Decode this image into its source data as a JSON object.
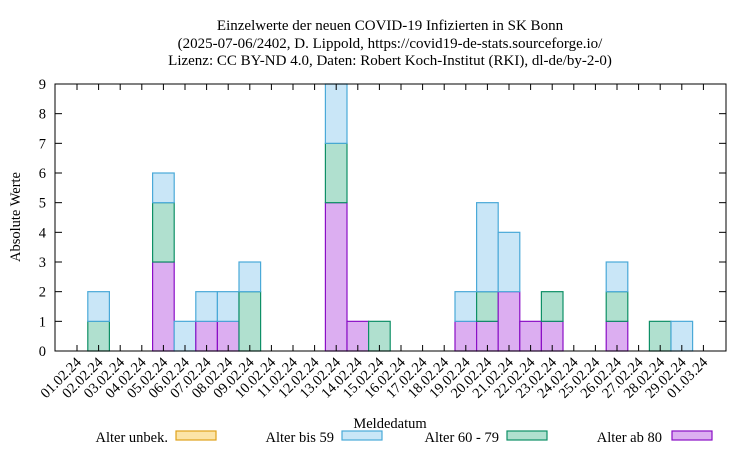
{
  "chart_data": {
    "type": "bar",
    "stacked": true,
    "title": [
      "Einzelwerte der neuen COVID-19 Infizierten in SK Bonn",
      "(2025-07-06/2402, D. Lippold, https://covid19-de-stats.sourceforge.io/",
      "Lizenz: CC BY-ND 4.0, Daten: Robert Koch-Institut (RKI), dl-de/by-2-0)"
    ],
    "xlabel": "Meldedatum",
    "ylabel": "Absolute Werte",
    "ylim": [
      0,
      9
    ],
    "yticks": [
      "0",
      "1",
      "2",
      "3",
      "4",
      "5",
      "6",
      "7",
      "8",
      "9"
    ],
    "categories": [
      "01.02.24",
      "02.02.24",
      "03.02.24",
      "04.02.24",
      "05.02.24",
      "06.02.24",
      "07.02.24",
      "08.02.24",
      "09.02.24",
      "10.02.24",
      "11.02.24",
      "12.02.24",
      "13.02.24",
      "14.02.24",
      "15.02.24",
      "16.02.24",
      "17.02.24",
      "18.02.24",
      "19.02.24",
      "20.02.24",
      "21.02.24",
      "22.02.24",
      "23.02.24",
      "24.02.24",
      "25.02.24",
      "26.02.24",
      "27.02.24",
      "28.02.24",
      "29.02.24",
      "01.03.24"
    ],
    "series": [
      {
        "name": "Alter ab 80",
        "fill": "#dcaef1",
        "stroke": "#8a0fc6",
        "values": [
          0,
          0,
          0,
          0,
          3,
          0,
          1,
          1,
          0,
          0,
          0,
          0,
          5,
          1,
          0,
          0,
          0,
          0,
          1,
          1,
          2,
          1,
          1,
          0,
          0,
          1,
          0,
          0,
          0,
          0
        ]
      },
      {
        "name": "Alter 60 - 79",
        "fill": "#b0e0cf",
        "stroke": "#0e8f66",
        "values": [
          0,
          1,
          0,
          0,
          2,
          0,
          0,
          0,
          2,
          0,
          0,
          0,
          2,
          0,
          1,
          0,
          0,
          0,
          0,
          1,
          0,
          0,
          1,
          0,
          0,
          1,
          0,
          1,
          0,
          0
        ]
      },
      {
        "name": "Alter bis 59",
        "fill": "#c9e6f7",
        "stroke": "#4aa9d8",
        "values": [
          0,
          1,
          0,
          0,
          1,
          1,
          1,
          1,
          1,
          0,
          0,
          0,
          2,
          0,
          0,
          0,
          0,
          0,
          1,
          3,
          2,
          0,
          0,
          0,
          0,
          1,
          0,
          0,
          1,
          0
        ]
      },
      {
        "name": "Alter unbek.",
        "fill": "#fce4a7",
        "stroke": "#e0a21b",
        "values": [
          0,
          0,
          0,
          0,
          0,
          0,
          0,
          0,
          0,
          0,
          0,
          0,
          0,
          0,
          0,
          0,
          0,
          0,
          0,
          0,
          0,
          0,
          0,
          0,
          0,
          0,
          0,
          0,
          0,
          0
        ]
      }
    ],
    "legend": {
      "placement": "bottom",
      "order": [
        "Alter unbek.",
        "Alter bis 59",
        "Alter 60 - 79",
        "Alter ab 80"
      ]
    },
    "grid": false
  }
}
